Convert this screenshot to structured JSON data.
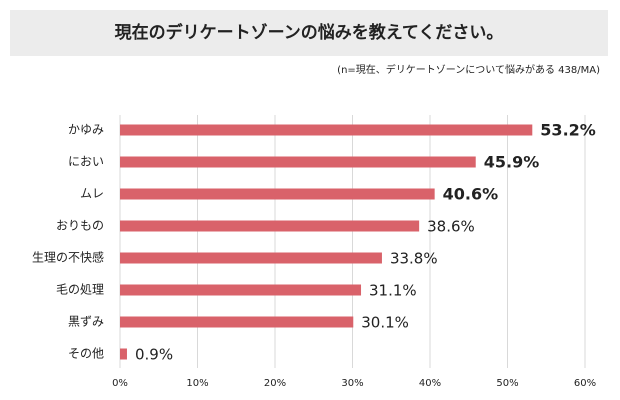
{
  "chart_data": {
    "type": "bar",
    "orientation": "horizontal",
    "title": "現在のデリケートゾーンの悩みを教えてください。",
    "subtitle": "(n=現在、デリケートゾーンについて悩みがある 438/MA)",
    "categories": [
      "かゆみ",
      "におい",
      "ムレ",
      "おりもの",
      "生理の不快感",
      "毛の処理",
      "黒ずみ",
      "その他"
    ],
    "values": [
      53.2,
      45.9,
      40.6,
      38.6,
      33.8,
      31.1,
      30.1,
      0.9
    ],
    "value_labels": [
      "53.2%",
      "45.9%",
      "40.6%",
      "38.6%",
      "33.8%",
      "31.1%",
      "30.1%",
      "0.9%"
    ],
    "value_label_bold": [
      true,
      true,
      true,
      false,
      false,
      false,
      false,
      false
    ],
    "color": "#d9626a",
    "xlim": [
      0,
      60
    ],
    "xticks": [
      {
        "value": 0,
        "label": "0%"
      },
      {
        "value": 10,
        "label": "10%"
      },
      {
        "value": 20,
        "label": "20%"
      },
      {
        "value": 30,
        "label": "30%"
      },
      {
        "value": 40,
        "label": "40%"
      },
      {
        "value": 50,
        "label": "50%"
      },
      {
        "value": 60,
        "label": "60%"
      }
    ],
    "grid": true
  }
}
